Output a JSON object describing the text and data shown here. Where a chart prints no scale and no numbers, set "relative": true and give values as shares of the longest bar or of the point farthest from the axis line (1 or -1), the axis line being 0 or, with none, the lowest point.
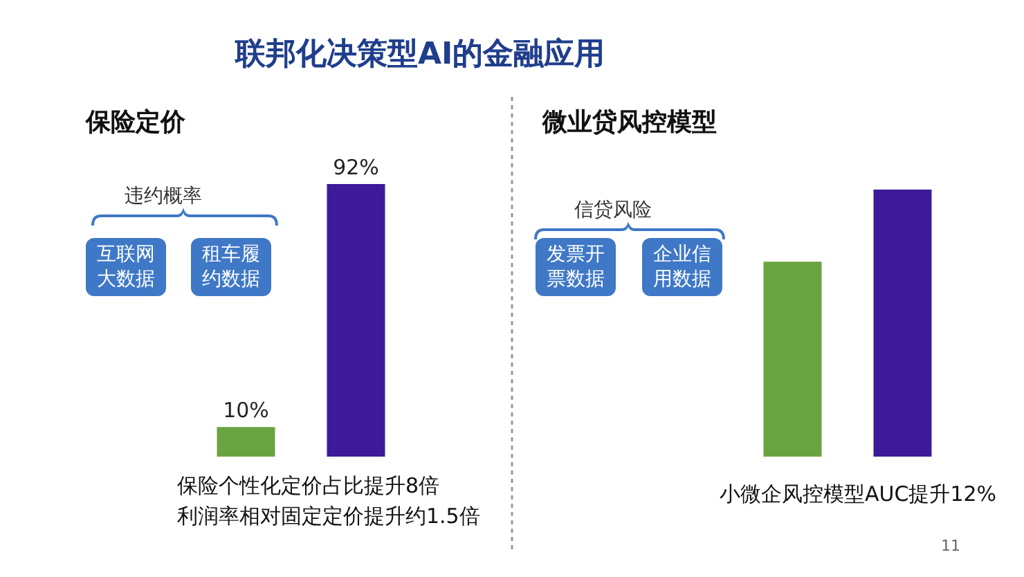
{
  "chart_data": [
    {
      "type": "bar",
      "title": "保险定价",
      "categories": [
        null,
        null
      ],
      "values": [
        10,
        92
      ],
      "colors": [
        "#6aa442",
        "#3d1a99"
      ],
      "value_labels": [
        "10%",
        "92%"
      ],
      "tick_labels": false,
      "annotations": [
        "联邦化决策型AI的金融应用",
        "违约概率",
        "互联网大数据",
        "租车履约数据",
        "保险个性化定价占比提升8倍",
        "利润率相对固定定价提升约1.5倍"
      ]
    },
    {
      "type": "bar",
      "title": "微业贷风控模型",
      "categories": [
        null,
        null
      ],
      "values": [
        0.73,
        1
      ],
      "colors": [
        "#6aa442",
        "#3d1a99"
      ],
      "relative": true,
      "tick_labels": false,
      "annotations": [
        "信贷风险",
        "发票开票数据",
        "企业信用数据",
        "小微企风控模型AUC提升12%",
        "11"
      ]
    }
  ]
}
